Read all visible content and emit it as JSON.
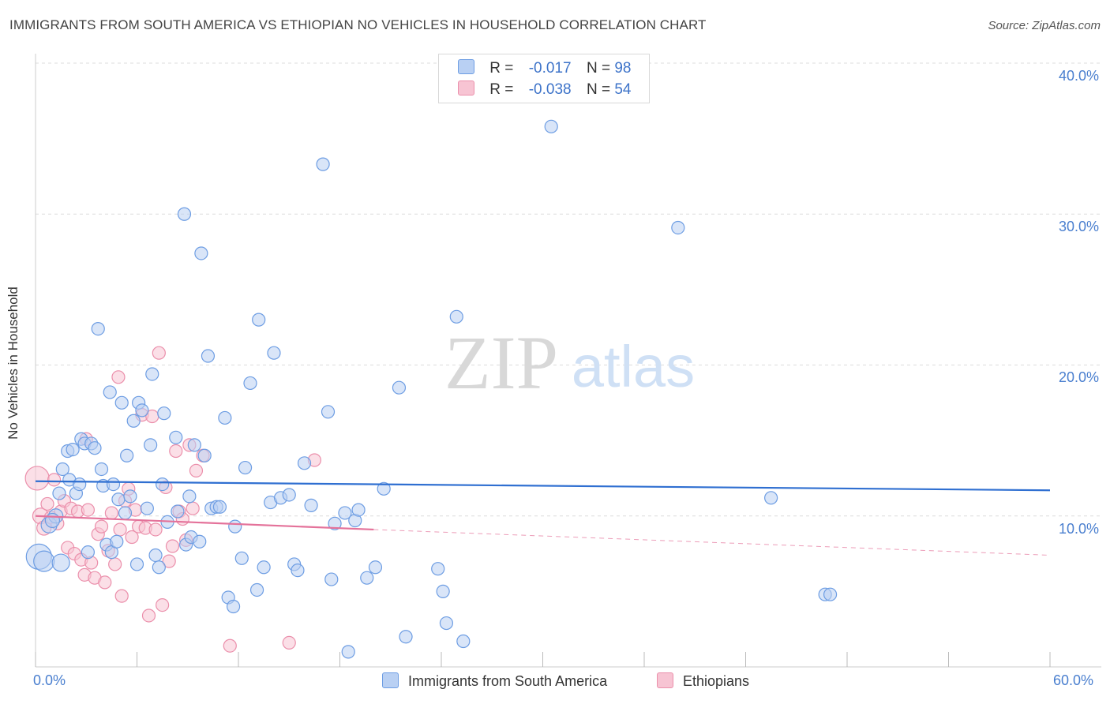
{
  "title": "IMMIGRANTS FROM SOUTH AMERICA VS ETHIOPIAN NO VEHICLES IN HOUSEHOLD CORRELATION CHART",
  "source": "Source: ZipAtlas.com",
  "watermark": {
    "zip": "ZIP",
    "atlas": "atlas"
  },
  "legend": {
    "rows": [
      {
        "r_label": "R =",
        "r_value": "-0.017",
        "n_label": "N =",
        "n_value": "98"
      },
      {
        "r_label": "R =",
        "r_value": "-0.038",
        "n_label": "N =",
        "n_value": "54"
      }
    ]
  },
  "bottom_legend": [
    "Immigrants from South America",
    "Ethiopians"
  ],
  "colors": {
    "blue_fill": "#b9d0f3",
    "blue_stroke": "#6d9de3",
    "blue_line": "#2f6fd1",
    "pink_fill": "#f7c4d3",
    "pink_stroke": "#eb8fab",
    "pink_line": "#e4729a",
    "tick_text": "#4a7fcf",
    "grid": "#dcdcdc"
  },
  "chart_data": {
    "type": "scatter",
    "title": "IMMIGRANTS FROM SOUTH AMERICA VS ETHIOPIAN NO VEHICLES IN HOUSEHOLD CORRELATION CHART",
    "xlabel": "",
    "ylabel": "No Vehicles in Household",
    "xlim": [
      0,
      60
    ],
    "ylim": [
      0,
      40
    ],
    "x_tick_labels": [
      "0.0%",
      "60.0%"
    ],
    "y_ticks": [
      10,
      20,
      30,
      40
    ],
    "y_tick_labels": [
      "10.0%",
      "20.0%",
      "30.0%",
      "40.0%"
    ],
    "series": [
      {
        "name": "Immigrants from South America",
        "R": -0.017,
        "N": 98,
        "trend": {
          "x0": 0,
          "y0": 12.3,
          "x1": 60,
          "y1": 11.7
        },
        "points": [
          [
            0.2,
            7.3,
            16
          ],
          [
            0.5,
            7.0,
            13
          ],
          [
            0.8,
            9.4,
            10
          ],
          [
            1.2,
            10.0,
            9
          ],
          [
            1.0,
            9.7,
            9
          ],
          [
            1.4,
            11.5,
            8
          ],
          [
            1.6,
            13.1,
            8
          ],
          [
            1.9,
            14.3,
            8
          ],
          [
            2.0,
            12.4,
            8
          ],
          [
            2.2,
            14.4,
            8
          ],
          [
            2.4,
            11.5,
            8
          ],
          [
            2.6,
            12.1,
            8
          ],
          [
            2.7,
            15.1,
            8
          ],
          [
            2.9,
            14.8,
            8
          ],
          [
            3.1,
            7.6,
            8
          ],
          [
            3.3,
            14.8,
            8
          ],
          [
            3.5,
            14.5,
            8
          ],
          [
            3.7,
            22.4,
            8
          ],
          [
            3.9,
            13.1,
            8
          ],
          [
            4.0,
            12.0,
            8
          ],
          [
            4.2,
            8.1,
            8
          ],
          [
            4.4,
            18.2,
            8
          ],
          [
            4.5,
            7.6,
            8
          ],
          [
            4.6,
            12.1,
            8
          ],
          [
            4.8,
            8.3,
            8
          ],
          [
            4.9,
            11.1,
            8
          ],
          [
            5.1,
            17.5,
            8
          ],
          [
            5.3,
            10.2,
            8
          ],
          [
            5.4,
            14.0,
            8
          ],
          [
            5.6,
            11.3,
            8
          ],
          [
            5.8,
            16.3,
            8
          ],
          [
            6.0,
            6.8,
            8
          ],
          [
            6.1,
            17.5,
            8
          ],
          [
            6.3,
            17.0,
            8
          ],
          [
            6.6,
            10.5,
            8
          ],
          [
            6.8,
            14.7,
            8
          ],
          [
            6.9,
            19.4,
            8
          ],
          [
            7.1,
            7.4,
            8
          ],
          [
            7.3,
            6.6,
            8
          ],
          [
            7.5,
            12.1,
            8
          ],
          [
            7.6,
            16.8,
            8
          ],
          [
            7.8,
            9.6,
            8
          ],
          [
            8.3,
            15.2,
            8
          ],
          [
            8.4,
            10.3,
            8
          ],
          [
            8.8,
            30.0,
            8
          ],
          [
            8.9,
            8.1,
            8
          ],
          [
            9.1,
            11.3,
            8
          ],
          [
            9.2,
            8.6,
            8
          ],
          [
            9.4,
            14.7,
            8
          ],
          [
            9.7,
            8.3,
            8
          ],
          [
            9.8,
            27.4,
            8
          ],
          [
            10.0,
            14.0,
            8
          ],
          [
            10.2,
            20.6,
            8
          ],
          [
            10.4,
            10.5,
            8
          ],
          [
            10.7,
            10.6,
            8
          ],
          [
            10.9,
            10.6,
            8
          ],
          [
            11.2,
            16.5,
            8
          ],
          [
            11.4,
            4.6,
            8
          ],
          [
            11.7,
            4.0,
            8
          ],
          [
            11.8,
            9.3,
            8
          ],
          [
            12.2,
            7.2,
            8
          ],
          [
            12.4,
            13.2,
            8
          ],
          [
            12.7,
            18.8,
            8
          ],
          [
            13.1,
            5.1,
            8
          ],
          [
            13.2,
            23.0,
            8
          ],
          [
            13.5,
            6.6,
            8
          ],
          [
            13.9,
            10.9,
            8
          ],
          [
            14.1,
            20.8,
            8
          ],
          [
            14.5,
            11.2,
            8
          ],
          [
            15.0,
            11.4,
            8
          ],
          [
            15.3,
            6.8,
            8
          ],
          [
            15.5,
            6.4,
            8
          ],
          [
            15.9,
            13.5,
            8
          ],
          [
            16.3,
            10.7,
            8
          ],
          [
            17.0,
            33.3,
            8
          ],
          [
            17.3,
            16.9,
            8
          ],
          [
            17.5,
            5.8,
            8
          ],
          [
            17.7,
            9.5,
            8
          ],
          [
            18.3,
            10.2,
            8
          ],
          [
            18.5,
            1.0,
            8
          ],
          [
            18.9,
            9.7,
            8
          ],
          [
            19.1,
            10.4,
            8
          ],
          [
            19.6,
            5.9,
            8
          ],
          [
            20.1,
            6.6,
            8
          ],
          [
            20.6,
            11.8,
            8
          ],
          [
            21.5,
            18.5,
            8
          ],
          [
            21.9,
            2.0,
            8
          ],
          [
            23.8,
            6.5,
            8
          ],
          [
            24.1,
            5.0,
            8
          ],
          [
            24.3,
            2.9,
            8
          ],
          [
            24.9,
            23.2,
            8
          ],
          [
            25.3,
            1.7,
            8
          ],
          [
            30.5,
            35.8,
            8
          ],
          [
            38.0,
            29.1,
            8
          ],
          [
            43.5,
            11.2,
            8
          ],
          [
            46.7,
            4.8,
            8
          ],
          [
            47.0,
            4.8,
            8
          ],
          [
            1.5,
            6.9,
            11
          ]
        ]
      },
      {
        "name": "Ethiopians",
        "R": -0.038,
        "N": 54,
        "trend": {
          "x0": 0,
          "y0": 10.0,
          "x1": 20,
          "y1": 9.1
        },
        "trend_extension": {
          "x0": 20,
          "y0": 9.1,
          "x1": 60,
          "y1": 7.4
        },
        "points": [
          [
            0.1,
            12.5,
            15
          ],
          [
            0.3,
            10.0,
            10
          ],
          [
            0.5,
            9.2,
            9
          ],
          [
            0.7,
            10.8,
            8
          ],
          [
            0.9,
            9.9,
            8
          ],
          [
            1.1,
            12.4,
            8
          ],
          [
            1.3,
            9.5,
            8
          ],
          [
            1.5,
            10.3,
            8
          ],
          [
            1.7,
            11.0,
            8
          ],
          [
            1.9,
            7.9,
            8
          ],
          [
            2.1,
            10.5,
            8
          ],
          [
            2.3,
            7.5,
            8
          ],
          [
            2.5,
            10.3,
            8
          ],
          [
            2.7,
            7.1,
            8
          ],
          [
            2.9,
            6.1,
            8
          ],
          [
            3.1,
            10.4,
            8
          ],
          [
            3.3,
            6.9,
            8
          ],
          [
            3.5,
            5.9,
            8
          ],
          [
            3.7,
            8.8,
            8
          ],
          [
            3.9,
            9.3,
            8
          ],
          [
            4.1,
            5.6,
            8
          ],
          [
            4.3,
            7.7,
            8
          ],
          [
            4.5,
            10.2,
            8
          ],
          [
            4.7,
            6.8,
            8
          ],
          [
            4.9,
            19.2,
            8
          ],
          [
            5.1,
            4.7,
            8
          ],
          [
            5.3,
            11.0,
            8
          ],
          [
            5.5,
            11.8,
            8
          ],
          [
            5.7,
            8.6,
            8
          ],
          [
            5.9,
            10.4,
            8
          ],
          [
            6.1,
            9.3,
            8
          ],
          [
            6.3,
            16.7,
            8
          ],
          [
            6.5,
            9.2,
            8
          ],
          [
            6.7,
            3.4,
            8
          ],
          [
            6.9,
            16.6,
            8
          ],
          [
            7.1,
            9.1,
            8
          ],
          [
            7.3,
            20.8,
            8
          ],
          [
            7.5,
            4.1,
            8
          ],
          [
            7.7,
            11.9,
            8
          ],
          [
            7.9,
            7.0,
            8
          ],
          [
            8.1,
            8.0,
            8
          ],
          [
            8.3,
            14.3,
            8
          ],
          [
            8.5,
            10.3,
            8
          ],
          [
            8.7,
            9.8,
            8
          ],
          [
            8.9,
            8.4,
            8
          ],
          [
            9.1,
            14.7,
            8
          ],
          [
            9.3,
            10.5,
            8
          ],
          [
            9.5,
            13.0,
            8
          ],
          [
            9.9,
            14.0,
            8
          ],
          [
            11.5,
            1.4,
            8
          ],
          [
            15.0,
            1.6,
            8
          ],
          [
            16.5,
            13.7,
            8
          ],
          [
            3.0,
            15.1,
            8
          ],
          [
            5.0,
            9.1,
            8
          ]
        ]
      }
    ]
  }
}
